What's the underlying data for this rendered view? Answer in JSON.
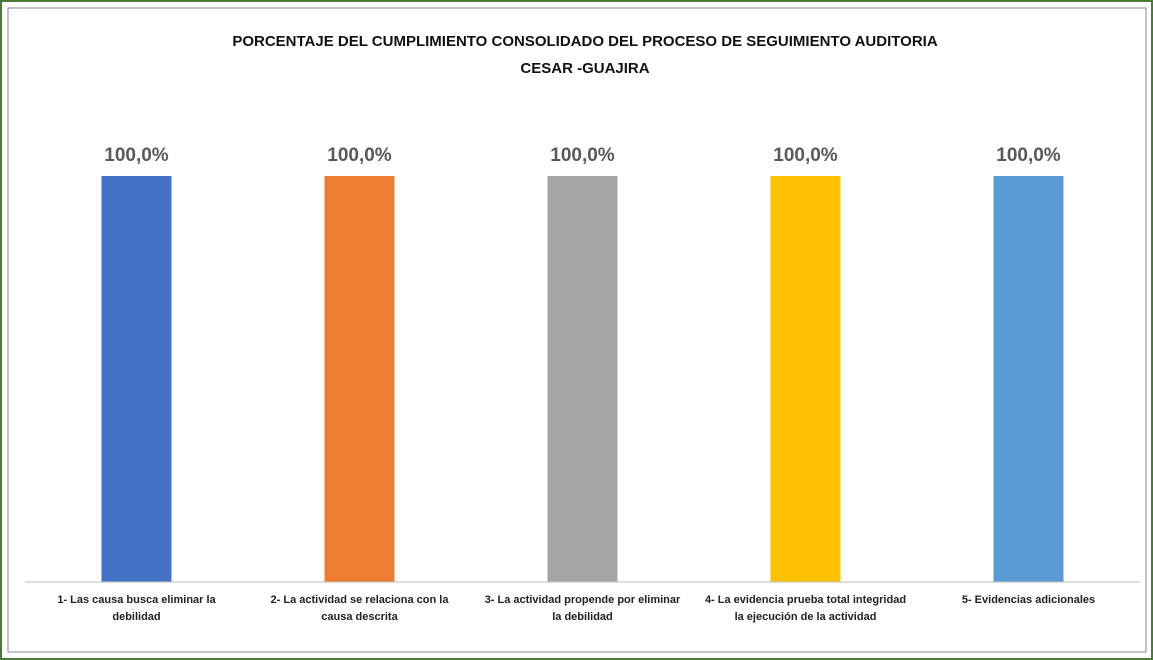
{
  "chart_data": {
    "type": "bar",
    "title": [
      "PORCENTAJE DEL CUMPLIMIENTO CONSOLIDADO DEL PROCESO DE SEGUIMIENTO AUDITORIA",
      "CESAR -GUAJIRA"
    ],
    "categories": [
      "1- Las causa busca eliminar la debilidad",
      "2- La actividad se relaciona con la causa descrita",
      "3- La actividad propende por eliminar la debilidad",
      "4- La evidencia prueba total integridad la ejecución de la actividad",
      "5- Evidencias adicionales"
    ],
    "values": [
      100,
      100,
      100,
      100,
      100
    ],
    "value_labels": [
      "100,0%",
      "100,0%",
      "100,0%",
      "100,0%",
      "100,0%"
    ],
    "colors": [
      "#4472c4",
      "#ed7d31",
      "#a5a5a5",
      "#ffc000",
      "#5b9bd5"
    ],
    "ylim": [
      0,
      100
    ]
  }
}
